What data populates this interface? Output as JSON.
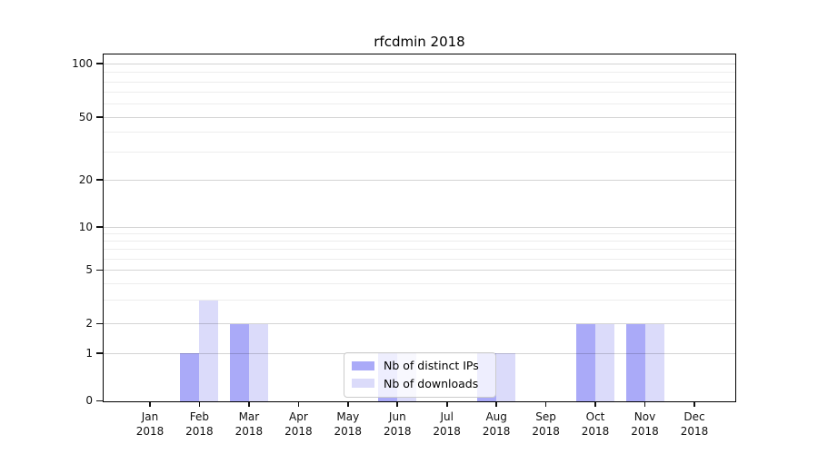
{
  "title": "rfcdmin 2018",
  "chart_data": {
    "type": "bar",
    "categories": [
      "Jan",
      "Feb",
      "Mar",
      "Apr",
      "May",
      "Jun",
      "Jul",
      "Aug",
      "Sep",
      "Oct",
      "Nov",
      "Dec"
    ],
    "year_label": "2018",
    "series": [
      {
        "name": "Nb of distinct IPs",
        "color": "#aaaaf8",
        "values": [
          0,
          1,
          2,
          0,
          0,
          1,
          0,
          1,
          0,
          2,
          2,
          0
        ]
      },
      {
        "name": "Nb of downloads",
        "color": "#dbdbfa",
        "values": [
          0,
          3,
          2,
          0,
          0,
          1,
          0,
          1,
          0,
          2,
          2,
          0
        ]
      }
    ],
    "yscale": "symlog",
    "ylim": [
      0,
      100
    ],
    "y_major_ticks": [
      100,
      50,
      20,
      10,
      5,
      2,
      1,
      0
    ],
    "y_minor_gridlines": [
      3,
      4,
      6,
      7,
      8,
      9,
      30,
      40,
      60,
      70,
      80,
      90
    ],
    "grid": true,
    "legend_position": "lower center"
  }
}
